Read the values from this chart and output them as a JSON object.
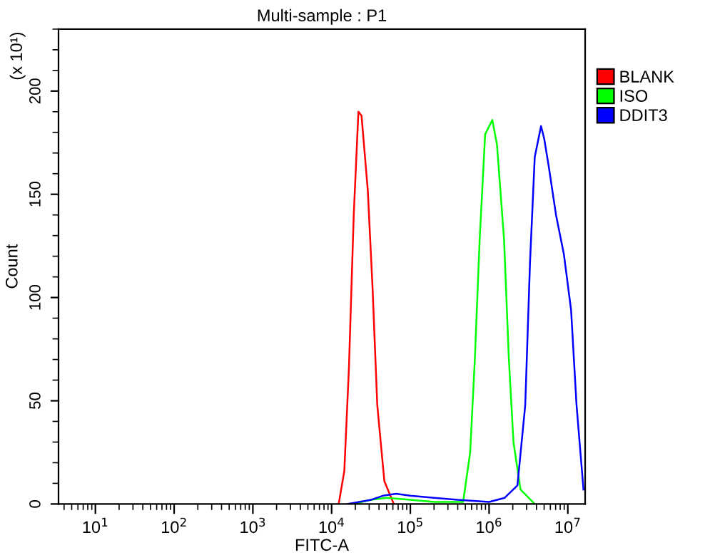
{
  "chart_data": {
    "type": "line",
    "title": "Multi-sample : P1",
    "xlabel": "FITC-A",
    "ylabel": "Count",
    "annotations": [
      "(x 10¹)"
    ],
    "log": "x",
    "xlim": [
      3.4,
      16600000
    ],
    "ylim": [
      0,
      230
    ],
    "xticks": [
      {
        "value": 10,
        "label": "10$^{1}$"
      },
      {
        "value": 100,
        "label": "10$^{2}$"
      },
      {
        "value": 1000,
        "label": "10$^{3}$"
      },
      {
        "value": 10000,
        "label": "10$^{4}$"
      },
      {
        "value": 100000,
        "label": "10$^{5}$"
      },
      {
        "value": 1000000,
        "label": "10$^{6}$"
      },
      {
        "value": 10000000,
        "label": "10$^{7}$"
      }
    ],
    "yticks": [
      0,
      50,
      100,
      150,
      200
    ],
    "grid": false,
    "legend": "right",
    "marker": "none",
    "line_style": "solid",
    "series": [
      {
        "name": "BLANK",
        "color": "#ff0000",
        "x": [
          12300,
          14500,
          16600,
          19100,
          21900,
          24000,
          28800,
          33100,
          38000,
          46800,
          61700
        ],
        "values": [
          0,
          16,
          66,
          140,
          190,
          188,
          152,
          105,
          48,
          11,
          0
        ]
      },
      {
        "name": "ISO",
        "color": "#00ff00",
        "x": [
          18600,
          31600,
          50100,
          100000,
          200000,
          468000,
          575000,
          661000,
          759000,
          891000,
          1100000,
          1260000,
          1550000,
          1780000,
          2040000,
          2510000,
          3800000
        ],
        "values": [
          0,
          2,
          3,
          2,
          1,
          1,
          25,
          71,
          128,
          179,
          186,
          174,
          128,
          71,
          30,
          7,
          0
        ]
      },
      {
        "name": "DDIT3",
        "color": "#0000ff",
        "x": [
          15800,
          31600,
          44700,
          66100,
          100000,
          200000,
          398000,
          1000000,
          1580000,
          2290000,
          2880000,
          3310000,
          3800000,
          4570000,
          5010000,
          5750000,
          7080000,
          8910000,
          11000000,
          12900000,
          15500000,
          15800000
        ],
        "values": [
          0,
          2,
          4,
          5,
          4,
          3,
          2,
          1,
          3,
          9,
          48,
          117,
          168,
          183,
          177,
          163,
          140,
          121,
          94,
          48,
          11,
          7
        ]
      }
    ]
  }
}
